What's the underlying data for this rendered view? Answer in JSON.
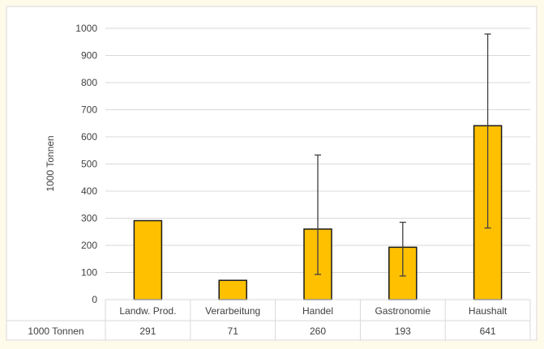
{
  "chart_data": {
    "type": "bar",
    "ylabel": "1000 Tonnen",
    "ylim": [
      0,
      1000
    ],
    "yticks": [
      0,
      100,
      200,
      300,
      400,
      500,
      600,
      700,
      800,
      900,
      1000
    ],
    "grid": true,
    "categories": [
      "Landw. Prod.",
      "Verarbeitung",
      "Handel",
      "Gastronomie",
      "Haushalt"
    ],
    "series": [
      {
        "name": "1000 Tonnen",
        "values": [
          291,
          71,
          260,
          193,
          641
        ],
        "error_low": [
          null,
          null,
          93,
          87,
          264
        ],
        "error_high": [
          null,
          null,
          533,
          285,
          979
        ]
      }
    ],
    "data_table": {
      "row_label": "1000 Tonnen",
      "values": [
        "291",
        "71",
        "260",
        "193",
        "641"
      ]
    },
    "colors": {
      "bar_fill": "#ffc000",
      "bar_stroke": "#1a1a1a",
      "grid": "#d9d9d9",
      "error_bar": "#404040",
      "text": "#404040",
      "background": "#fffbea",
      "plot_background": "#ffffff",
      "frame": "#d9d9d9"
    }
  }
}
